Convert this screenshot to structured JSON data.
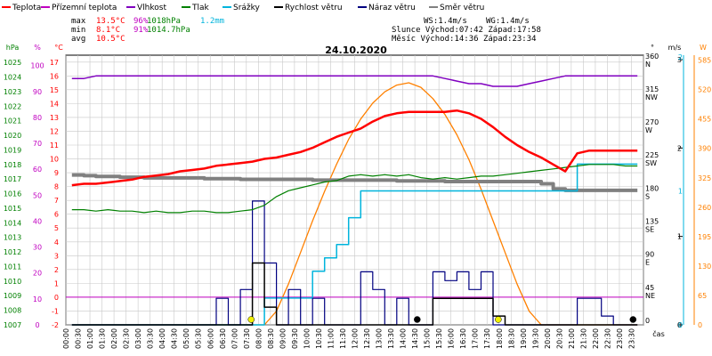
{
  "colors": {
    "temp": "#ff0000",
    "feels": "#c000c0",
    "humidity": "#8000c0",
    "pressure": "#008000",
    "rain": "#00b4dc",
    "wind": "#000000",
    "gust": "#000080",
    "direction": "#808080",
    "solar": "#ff8000",
    "grid": "#c8c8c8"
  },
  "legend": [
    {
      "label": "Teplota",
      "color_key": "temp"
    },
    {
      "label": "Přízemní teplota",
      "color_key": "feels"
    },
    {
      "label": "Vlhkost",
      "color_key": "humidity"
    },
    {
      "label": "Tlak",
      "color_key": "pressure"
    },
    {
      "label": "Srážky",
      "color_key": "rain"
    },
    {
      "label": "Rychlost větru",
      "color_key": "wind"
    },
    {
      "label": "Náraz větru",
      "color_key": "gust"
    },
    {
      "label": "Směr větru",
      "color_key": "direction"
    }
  ],
  "stats": {
    "rows": [
      {
        "label": "max",
        "temp": "13.5°C",
        "hum": "96%",
        "press": "1018hPa",
        "rain": "1.2mm"
      },
      {
        "label": "min",
        "temp": "8.1°C",
        "hum": "91%",
        "press": "1014.7hPa",
        "rain": ""
      },
      {
        "label": "avg",
        "temp": "10.5°C",
        "hum": "",
        "press": "",
        "rain": ""
      }
    ],
    "ws": "WS:1.4m/s",
    "wg": "WG:1.4m/s",
    "sun": "Slunce Východ:07:42  Západ:17:58",
    "moon": "Měsíc  Východ:14:36  Západ:23:34"
  },
  "chart_data": {
    "type": "line",
    "title": "24.10.2020",
    "xlabel": "čas",
    "x": [
      "00:00",
      "00:30",
      "01:00",
      "01:30",
      "02:00",
      "02:30",
      "03:00",
      "03:30",
      "04:00",
      "04:30",
      "05:00",
      "05:30",
      "06:00",
      "06:30",
      "07:00",
      "07:30",
      "08:00",
      "08:30",
      "09:00",
      "09:30",
      "10:00",
      "10:30",
      "11:00",
      "11:30",
      "12:00",
      "12:30",
      "13:00",
      "13:30",
      "14:00",
      "14:30",
      "15:00",
      "15:30",
      "16:00",
      "16:30",
      "17:00",
      "17:30",
      "18:00",
      "18:30",
      "19:00",
      "19:30",
      "20:00",
      "20:30",
      "21:00",
      "21:30",
      "22:00",
      "22:30",
      "23:00",
      "23:30"
    ],
    "axes": {
      "hpa": {
        "label": "hPa",
        "ticks": [
          "1007",
          "1008",
          "1009",
          "1010",
          "1011",
          "1012",
          "1013",
          "1014",
          "1015",
          "1016",
          "1017",
          "1018",
          "1019",
          "1020",
          "1021",
          "1022",
          "1023",
          "1024",
          "1025"
        ]
      },
      "pct": {
        "label": "%",
        "ticks": [
          "0",
          "10",
          "20",
          "30",
          "40",
          "50",
          "60",
          "70",
          "80",
          "90",
          "100"
        ]
      },
      "temp": {
        "label": "°C",
        "ticks": [
          "-2",
          "-1",
          "0",
          "1",
          "2",
          "3",
          "4",
          "5",
          "6",
          "7",
          "8",
          "9",
          "10",
          "11",
          "12",
          "13",
          "14",
          "15",
          "16",
          "17"
        ]
      },
      "dir": {
        "label": "°",
        "ticks": [
          "0",
          "45",
          "90",
          "135",
          "180",
          "225",
          "270",
          "315",
          "360"
        ],
        "compass": [
          "NE",
          "E",
          "SE",
          "S",
          "SW",
          "W",
          "NW",
          "N"
        ]
      },
      "ms": {
        "label": "m/s",
        "ticks": [
          "0",
          "1",
          "2",
          "3"
        ]
      },
      "rain": {
        "label": "mm",
        "ticks": [
          "0",
          "1",
          "2"
        ]
      },
      "solar": {
        "label": "W",
        "ticks": [
          "0",
          "65",
          "130",
          "195",
          "260",
          "325",
          "390",
          "455",
          "520",
          "585"
        ]
      }
    },
    "series": [
      {
        "name": "Teplota",
        "color_key": "temp",
        "axis": "temp",
        "values": [
          8.1,
          8.2,
          8.2,
          8.3,
          8.4,
          8.5,
          8.7,
          8.8,
          8.9,
          9.1,
          9.2,
          9.3,
          9.5,
          9.6,
          9.7,
          9.8,
          10.0,
          10.1,
          10.3,
          10.5,
          10.8,
          11.2,
          11.6,
          11.9,
          12.2,
          12.7,
          13.1,
          13.3,
          13.4,
          13.4,
          13.4,
          13.4,
          13.5,
          13.3,
          12.9,
          12.3,
          11.6,
          11.0,
          10.5,
          10.1,
          9.6,
          9.1,
          10.4,
          10.6,
          10.6,
          10.6,
          10.6,
          10.6
        ]
      },
      {
        "name": "Vlhkost",
        "color_key": "humidity",
        "axis": "pct",
        "values": [
          95,
          95,
          96,
          96,
          96,
          96,
          96,
          96,
          96,
          96,
          96,
          96,
          96,
          96,
          96,
          96,
          96,
          96,
          96,
          96,
          96,
          96,
          96,
          96,
          96,
          96,
          96,
          96,
          96,
          96,
          96,
          95,
          94,
          93,
          93,
          92,
          92,
          92,
          93,
          94,
          95,
          96,
          96,
          96,
          96,
          96,
          96,
          96
        ]
      },
      {
        "name": "Tlak",
        "color_key": "pressure",
        "axis": "hpa",
        "values": [
          1014.9,
          1014.9,
          1014.8,
          1014.9,
          1014.8,
          1014.8,
          1014.7,
          1014.8,
          1014.7,
          1014.7,
          1014.8,
          1014.8,
          1014.7,
          1014.7,
          1014.8,
          1014.9,
          1015.2,
          1015.8,
          1016.2,
          1016.4,
          1016.6,
          1016.8,
          1016.9,
          1017.2,
          1017.3,
          1017.2,
          1017.3,
          1017.2,
          1017.3,
          1017.1,
          1017.0,
          1017.1,
          1017.0,
          1017.1,
          1017.2,
          1017.2,
          1017.3,
          1017.4,
          1017.5,
          1017.6,
          1017.7,
          1017.8,
          1017.9,
          1018.0,
          1018.0,
          1018.0,
          1017.9,
          1017.9
        ]
      },
      {
        "name": "Srážky",
        "color_key": "rain",
        "axis": "rain",
        "values": [
          0,
          0,
          0,
          0,
          0,
          0,
          0,
          0,
          0,
          0,
          0,
          0,
          0,
          0,
          0,
          0,
          0.2,
          0.2,
          0.2,
          0.2,
          0.4,
          0.5,
          0.6,
          0.8,
          1.0,
          1.0,
          1.0,
          1.0,
          1.0,
          1.0,
          1.0,
          1.0,
          1.0,
          1.0,
          1.0,
          1.0,
          1.0,
          1.0,
          1.0,
          1.0,
          1.0,
          1.0,
          1.2,
          1.2,
          1.2,
          1.2,
          1.2,
          1.2
        ]
      },
      {
        "name": "Rychlost větru",
        "color_key": "wind",
        "axis": "ms",
        "values": [
          0,
          0,
          0,
          0,
          0,
          0,
          0,
          0,
          0,
          0,
          0,
          0,
          0,
          0,
          0,
          0.7,
          0.2,
          0,
          0,
          0,
          0,
          0,
          0,
          0,
          0,
          0,
          0,
          0,
          0,
          0,
          0.3,
          0.3,
          0.3,
          0.3,
          0.3,
          0.1,
          0,
          0,
          0,
          0,
          0,
          0,
          0,
          0,
          0,
          0,
          0,
          0
        ]
      },
      {
        "name": "Náraz větru",
        "color_key": "gust",
        "axis": "ms",
        "values": [
          0,
          0,
          0,
          0,
          0,
          0,
          0,
          0,
          0,
          0,
          0,
          0,
          0.3,
          0,
          0.4,
          1.4,
          0.7,
          0,
          0.4,
          0,
          0.3,
          0,
          0,
          0,
          0.6,
          0.4,
          0,
          0.3,
          0,
          0,
          0.6,
          0.5,
          0.6,
          0.4,
          0.6,
          0,
          0,
          0,
          0,
          0,
          0,
          0,
          0.3,
          0.3,
          0.1,
          0,
          0,
          0
        ]
      },
      {
        "name": "Směr větru",
        "color_key": "direction",
        "axis": "dir",
        "values": [
          204,
          203,
          202,
          202,
          201,
          201,
          200,
          200,
          200,
          200,
          200,
          199,
          199,
          199,
          198,
          198,
          198,
          198,
          198,
          198,
          197,
          197,
          197,
          197,
          197,
          197,
          197,
          196,
          196,
          196,
          196,
          195,
          195,
          195,
          195,
          195,
          195,
          195,
          195,
          192,
          185,
          183,
          183,
          183,
          183,
          183,
          183,
          183
        ]
      },
      {
        "name": "",
        "color_key": "solar",
        "axis": "solar",
        "values": [
          0,
          0,
          0,
          0,
          0,
          0,
          0,
          0,
          0,
          0,
          0,
          0,
          0,
          0,
          0,
          0,
          0,
          30,
          90,
          160,
          230,
          295,
          355,
          410,
          455,
          490,
          515,
          530,
          535,
          525,
          500,
          465,
          420,
          365,
          300,
          230,
          160,
          90,
          30,
          0,
          0,
          0,
          0,
          0,
          0,
          0,
          0,
          0
        ]
      }
    ],
    "markers": [
      {
        "symbol": "sun",
        "time": "07:42",
        "color": "#f0f000"
      },
      {
        "symbol": "moon",
        "time": "14:36",
        "color": "#000000"
      },
      {
        "symbol": "sun",
        "time": "17:58",
        "color": "#f0f000"
      },
      {
        "symbol": "moon",
        "time": "23:34",
        "color": "#000000"
      }
    ]
  }
}
